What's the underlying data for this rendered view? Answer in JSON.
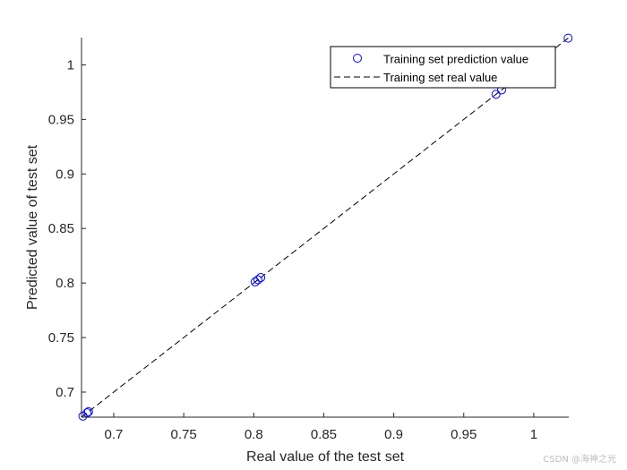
{
  "chart_data": {
    "type": "scatter",
    "xlabel": "Real value of the test set",
    "ylabel": "Predicted value of test set",
    "xlim": [
      0.677,
      1.025
    ],
    "ylim": [
      0.677,
      1.025
    ],
    "xticks": [
      0.7,
      0.75,
      0.8,
      0.85,
      0.9,
      0.95,
      1
    ],
    "yticks": [
      0.7,
      0.75,
      0.8,
      0.85,
      0.9,
      0.95,
      1
    ],
    "xtick_labels": [
      "0.7",
      "0.75",
      "0.8",
      "0.85",
      "0.9",
      "0.95",
      "1"
    ],
    "ytick_labels": [
      "0.7",
      "0.75",
      "0.8",
      "0.85",
      "0.9",
      "0.95",
      "1"
    ],
    "grid": false,
    "legend_position": "top-right",
    "series": [
      {
        "name": "Training set prediction value",
        "style": "markers",
        "marker": "open-circle",
        "color": "#0000ff",
        "x": [
          0.678,
          0.681,
          0.682,
          0.801,
          0.803,
          0.805,
          0.973,
          0.977,
          1.0245
        ],
        "y": [
          0.678,
          0.681,
          0.682,
          0.801,
          0.803,
          0.805,
          0.973,
          0.977,
          1.0245
        ]
      },
      {
        "name": "Training set real value",
        "style": "dashed-line",
        "color": "#000000",
        "x": [
          0.677,
          1.025
        ],
        "y": [
          0.677,
          1.025
        ]
      }
    ]
  },
  "watermark": "CSDN @海神之光"
}
